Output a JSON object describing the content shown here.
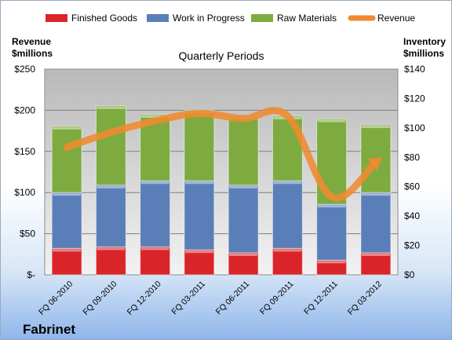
{
  "chart_data": {
    "type": "bar",
    "stacked": true,
    "title": "Quarterly Periods",
    "company": "Fabrinet",
    "categories": [
      "FQ 06-2010",
      "FQ 09-2010",
      "FQ 12-2010",
      "FQ 03-2011",
      "FQ 06-2011",
      "FQ 09-2011",
      "FQ 12-2011",
      "FQ 03-2012"
    ],
    "left_axis": {
      "label_line1": "Revenue",
      "label_line2": "$millions",
      "ylim": [
        0,
        250
      ],
      "ticks": [
        0,
        50,
        100,
        150,
        200,
        250
      ],
      "tick_labels": [
        "$-",
        "$50",
        "$100",
        "$150",
        "$200",
        "$250"
      ]
    },
    "right_axis": {
      "label_line1": "Inventory",
      "label_line2": "$millions",
      "ylim": [
        0,
        140
      ],
      "ticks": [
        0,
        20,
        40,
        60,
        80,
        100,
        120,
        140
      ],
      "tick_labels": [
        "$0",
        "$20",
        "$40",
        "$60",
        "$80",
        "$100",
        "$120",
        "$140"
      ]
    },
    "series": [
      {
        "name": "Finished Goods",
        "axis": "right",
        "color": "#d9252a",
        "values": [
          18,
          19,
          19,
          17,
          15,
          18,
          10,
          15
        ]
      },
      {
        "name": "Work in Progress",
        "axis": "right",
        "color": "#5a7fb8",
        "values": [
          38,
          42,
          45,
          47,
          46,
          46,
          38,
          41
        ]
      },
      {
        "name": "Raw Materials",
        "axis": "right",
        "color": "#7eab3f",
        "values": [
          45,
          54,
          45,
          48,
          47,
          44,
          58,
          46
        ]
      }
    ],
    "line_series": {
      "name": "Revenue",
      "axis": "left",
      "color": "#f08a30",
      "values": [
        155,
        173,
        187,
        196,
        190,
        193,
        95,
        137
      ]
    },
    "grid": true,
    "legend_position": "top"
  }
}
